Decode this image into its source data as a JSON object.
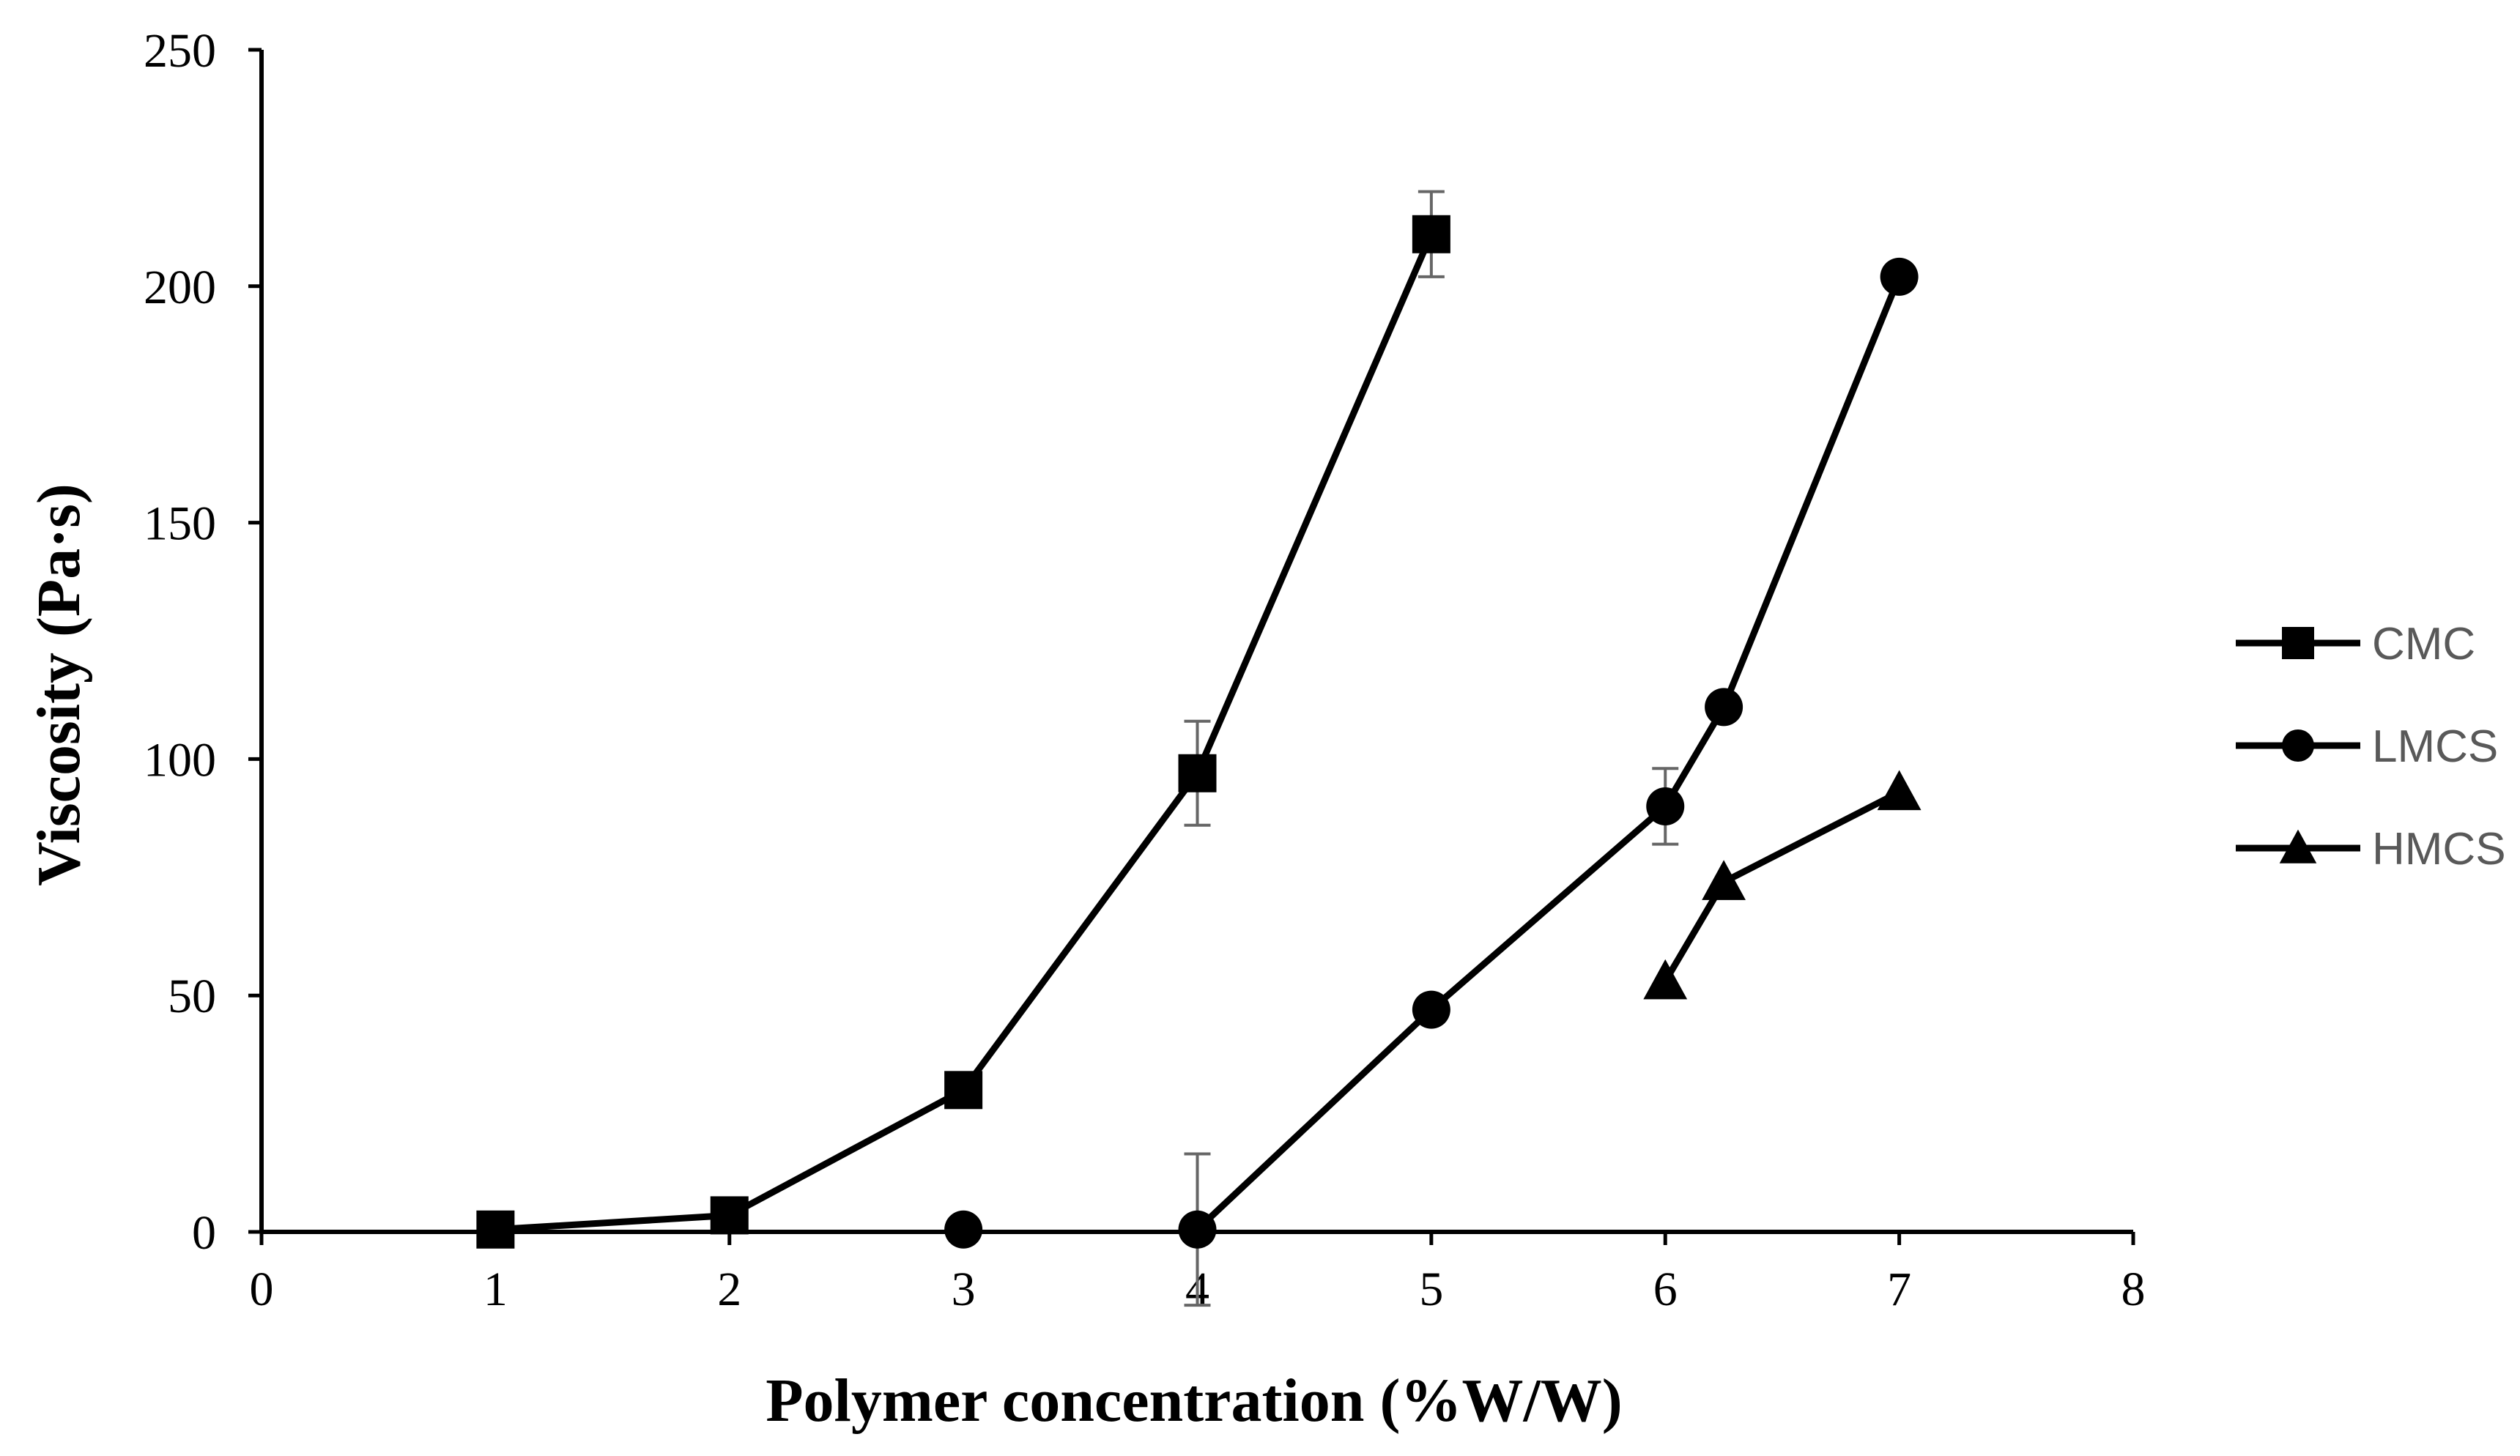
{
  "chart_data": {
    "type": "line",
    "title": "",
    "xlabel": "Polymer concentration (%W/W)",
    "ylabel": "Viscosity (Pa·s)",
    "xlim": [
      0,
      8
    ],
    "ylim": [
      0,
      250
    ],
    "xticks": [
      "0",
      "1",
      "2",
      "3",
      "4",
      "5",
      "6",
      "7",
      "8"
    ],
    "yticks": [
      "0",
      "50",
      "100",
      "150",
      "200",
      "250"
    ],
    "grid": false,
    "legend_position": "right",
    "line_color": "#000000",
    "error_bar_color": "#666666",
    "series": [
      {
        "name": "CMC",
        "marker": "square",
        "x": [
          1,
          2,
          3,
          4,
          5
        ],
        "y": [
          0.5,
          3.5,
          30,
          97,
          211
        ],
        "err": [
          0,
          0,
          0,
          11,
          9
        ]
      },
      {
        "name": "LMCS",
        "marker": "circle",
        "x": [
          3,
          4,
          5,
          6,
          6.25,
          7
        ],
        "y": [
          0.5,
          0.5,
          47,
          90,
          111,
          202
        ],
        "err": [
          0,
          16,
          0,
          8,
          0,
          0
        ],
        "connected_from_index": 1
      },
      {
        "name": "HMCS",
        "marker": "triangle",
        "x": [
          6,
          6.25,
          7
        ],
        "y": [
          53,
          74,
          93
        ],
        "err": [
          0,
          0,
          0
        ]
      }
    ]
  }
}
